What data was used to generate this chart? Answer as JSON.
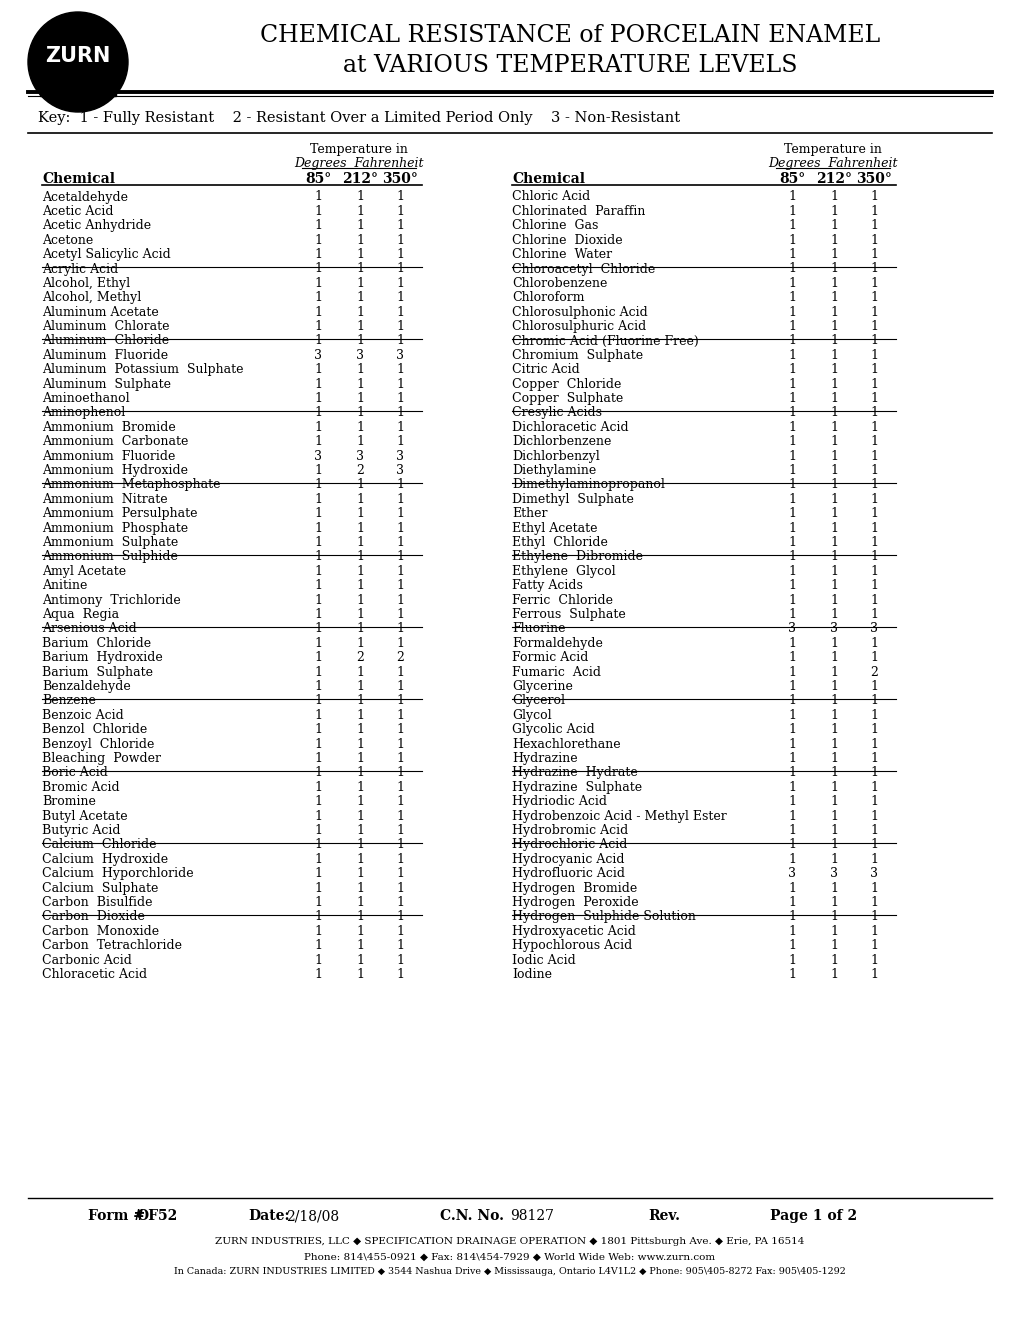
{
  "title_line1": "CHEMICAL RESISTANCE of PORCELAIN ENAMEL",
  "title_line2": "at VARIOUS TEMPERATURE LEVELS",
  "key_text": "Key:  1 - Fully Resistant    2 - Resistant Over a Limited Period Only    3 - Non-Resistant",
  "col_header_left": "Chemical",
  "col_header_right": "Chemical",
  "temp_cols": [
    "85°",
    "212°",
    "350°"
  ],
  "left_data": [
    [
      "Acetaldehyde",
      1,
      1,
      1
    ],
    [
      "Acetic Acid",
      1,
      1,
      1
    ],
    [
      "Acetic Anhydride",
      1,
      1,
      1
    ],
    [
      "Acetone",
      1,
      1,
      1
    ],
    [
      "Acetyl Salicylic Acid",
      1,
      1,
      1
    ],
    null,
    [
      "Acrylic Acid",
      1,
      1,
      1
    ],
    [
      "Alcohol, Ethyl",
      1,
      1,
      1
    ],
    [
      "Alcohol, Methyl",
      1,
      1,
      1
    ],
    [
      "Aluminum Acetate",
      1,
      1,
      1
    ],
    [
      "Aluminum  Chlorate",
      1,
      1,
      1
    ],
    null,
    [
      "Aluminum  Chloride",
      1,
      1,
      1
    ],
    [
      "Aluminum  Fluoride",
      3,
      3,
      3
    ],
    [
      "Aluminum  Potassium  Sulphate",
      1,
      1,
      1
    ],
    [
      "Aluminum  Sulphate",
      1,
      1,
      1
    ],
    [
      "Aminoethanol",
      1,
      1,
      1
    ],
    null,
    [
      "Aminophenol",
      1,
      1,
      1
    ],
    [
      "Ammonium  Bromide",
      1,
      1,
      1
    ],
    [
      "Ammonium  Carbonate",
      1,
      1,
      1
    ],
    [
      "Ammonium  Fluoride",
      3,
      3,
      3
    ],
    [
      "Ammonium  Hydroxide",
      1,
      2,
      3
    ],
    null,
    [
      "Ammonium  Metaphosphate",
      1,
      1,
      1
    ],
    [
      "Ammonium  Nitrate",
      1,
      1,
      1
    ],
    [
      "Ammonium  Persulphate",
      1,
      1,
      1
    ],
    [
      "Ammonium  Phosphate",
      1,
      1,
      1
    ],
    [
      "Ammonium  Sulphate",
      1,
      1,
      1
    ],
    null,
    [
      "Ammonium  Sulphide",
      1,
      1,
      1
    ],
    [
      "Amyl Acetate",
      1,
      1,
      1
    ],
    [
      "Anitine",
      1,
      1,
      1
    ],
    [
      "Antimony  Trichloride",
      1,
      1,
      1
    ],
    [
      "Aqua  Regia",
      1,
      1,
      1
    ],
    null,
    [
      "Arsenious Acid",
      1,
      1,
      1
    ],
    [
      "Barium  Chloride",
      1,
      1,
      1
    ],
    [
      "Barium  Hydroxide",
      1,
      2,
      2
    ],
    [
      "Barium  Sulphate",
      1,
      1,
      1
    ],
    [
      "Benzaldehyde",
      1,
      1,
      1
    ],
    null,
    [
      "Benzene",
      1,
      1,
      1
    ],
    [
      "Benzoic Acid",
      1,
      1,
      1
    ],
    [
      "Benzol  Chloride",
      1,
      1,
      1
    ],
    [
      "Benzoyl  Chloride",
      1,
      1,
      1
    ],
    [
      "Bleaching  Powder",
      1,
      1,
      1
    ],
    null,
    [
      "Boric Acid",
      1,
      1,
      1
    ],
    [
      "Bromic Acid",
      1,
      1,
      1
    ],
    [
      "Bromine",
      1,
      1,
      1
    ],
    [
      "Butyl Acetate",
      1,
      1,
      1
    ],
    [
      "Butyric Acid",
      1,
      1,
      1
    ],
    null,
    [
      "Calcium  Chloride",
      1,
      1,
      1
    ],
    [
      "Calcium  Hydroxide",
      1,
      1,
      1
    ],
    [
      "Calcium  Hyporchloride",
      1,
      1,
      1
    ],
    [
      "Calcium  Sulphate",
      1,
      1,
      1
    ],
    [
      "Carbon  Bisulfide",
      1,
      1,
      1
    ],
    null,
    [
      "Carbon  Dioxide",
      1,
      1,
      1
    ],
    [
      "Carbon  Monoxide",
      1,
      1,
      1
    ],
    [
      "Carbon  Tetrachloride",
      1,
      1,
      1
    ],
    [
      "Carbonic Acid",
      1,
      1,
      1
    ],
    [
      "Chloracetic Acid",
      1,
      1,
      1
    ]
  ],
  "right_data": [
    [
      "Chloric Acid",
      1,
      1,
      1
    ],
    [
      "Chlorinated  Paraffin",
      1,
      1,
      1
    ],
    [
      "Chlorine  Gas",
      1,
      1,
      1
    ],
    [
      "Chlorine  Dioxide",
      1,
      1,
      1
    ],
    [
      "Chlorine  Water",
      1,
      1,
      1
    ],
    null,
    [
      "Chloroacetyl  Chloride",
      1,
      1,
      1
    ],
    [
      "Chlorobenzene",
      1,
      1,
      1
    ],
    [
      "Chloroform",
      1,
      1,
      1
    ],
    [
      "Chlorosulphonic Acid",
      1,
      1,
      1
    ],
    [
      "Chlorosulphuric Acid",
      1,
      1,
      1
    ],
    null,
    [
      "Chromic Acid (Fluorine Free)",
      1,
      1,
      1
    ],
    [
      "Chromium  Sulphate",
      1,
      1,
      1
    ],
    [
      "Citric Acid",
      1,
      1,
      1
    ],
    [
      "Copper  Chloride",
      1,
      1,
      1
    ],
    [
      "Copper  Sulphate",
      1,
      1,
      1
    ],
    null,
    [
      "Cresylic Acids",
      1,
      1,
      1
    ],
    [
      "Dichloracetic Acid",
      1,
      1,
      1
    ],
    [
      "Dichlorbenzene",
      1,
      1,
      1
    ],
    [
      "Dichlorbenzyl",
      1,
      1,
      1
    ],
    [
      "Diethylamine",
      1,
      1,
      1
    ],
    null,
    [
      "Dimethylaminopropanol",
      1,
      1,
      1
    ],
    [
      "Dimethyl  Sulphate",
      1,
      1,
      1
    ],
    [
      "Ether",
      1,
      1,
      1
    ],
    [
      "Ethyl Acetate",
      1,
      1,
      1
    ],
    [
      "Ethyl  Chloride",
      1,
      1,
      1
    ],
    null,
    [
      "Ethylene  Dibromide",
      1,
      1,
      1
    ],
    [
      "Ethylene  Glycol",
      1,
      1,
      1
    ],
    [
      "Fatty Acids",
      1,
      1,
      1
    ],
    [
      "Ferric  Chloride",
      1,
      1,
      1
    ],
    [
      "Ferrous  Sulphate",
      1,
      1,
      1
    ],
    null,
    [
      "Fluorine",
      3,
      3,
      3
    ],
    [
      "Formaldehyde",
      1,
      1,
      1
    ],
    [
      "Formic Acid",
      1,
      1,
      1
    ],
    [
      "Fumaric  Acid",
      1,
      1,
      2
    ],
    [
      "Glycerine",
      1,
      1,
      1
    ],
    null,
    [
      "Glycerol",
      1,
      1,
      1
    ],
    [
      "Glycol",
      1,
      1,
      1
    ],
    [
      "Glycolic Acid",
      1,
      1,
      1
    ],
    [
      "Hexachlorethane",
      1,
      1,
      1
    ],
    [
      "Hydrazine",
      1,
      1,
      1
    ],
    null,
    [
      "Hydrazine  Hydrate",
      1,
      1,
      1
    ],
    [
      "Hydrazine  Sulphate",
      1,
      1,
      1
    ],
    [
      "Hydriodic Acid",
      1,
      1,
      1
    ],
    [
      "Hydrobenzoic Acid - Methyl Ester",
      1,
      1,
      1
    ],
    [
      "Hydrobromic Acid",
      1,
      1,
      1
    ],
    null,
    [
      "Hydrochloric Acid",
      1,
      1,
      1
    ],
    [
      "Hydrocyanic Acid",
      1,
      1,
      1
    ],
    [
      "Hydrofluoric Acid",
      3,
      3,
      3
    ],
    [
      "Hydrogen  Bromide",
      1,
      1,
      1
    ],
    [
      "Hydrogen  Peroxide",
      1,
      1,
      1
    ],
    null,
    [
      "Hydrogen  Sulphide Solution",
      1,
      1,
      1
    ],
    [
      "Hydroxyacetic Acid",
      1,
      1,
      1
    ],
    [
      "Hypochlorous Acid",
      1,
      1,
      1
    ],
    [
      "Iodic Acid",
      1,
      1,
      1
    ],
    [
      "Iodine",
      1,
      1,
      1
    ]
  ],
  "footer_company": "ZURN INDUSTRIES, LLC ◆ SPECIFICATION DRAINAGE OPERATION ◆ 1801 Pittsburgh Ave. ◆ Erie, PA 16514",
  "footer_phone": "Phone: 814\\455-0921 ◆ Fax: 814\\454-7929 ◆ World Wide Web: www.zurn.com",
  "footer_canada": "In Canada: ZURN INDUSTRIES LIMITED ◆ 3544 Nashua Drive ◆ Mississauga, Ontario L4V1L2 ◆ Phone: 905\\405-8272 Fax: 905\\405-1292",
  "bg_color": "#ffffff",
  "text_color": "#000000"
}
